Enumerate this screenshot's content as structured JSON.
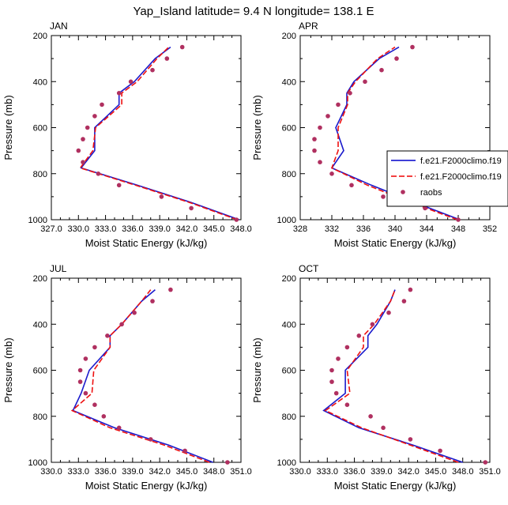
{
  "figure_title": "Yap_Island  latitude= 9.4 N longitude= 138.1 E",
  "legend": {
    "entries": [
      {
        "label": "f.e21.F2000climo.f19",
        "color": "#0000cc",
        "style": "solid"
      },
      {
        "label": "f.e21.F2000climo.f19",
        "color": "#ee0000",
        "style": "dashed"
      },
      {
        "label": "raobs",
        "color": "#b03060",
        "style": "marker"
      }
    ]
  },
  "colors": {
    "model1": "#1a1acc",
    "model2": "#ee1111",
    "obs": "#b03060"
  },
  "chart_data": [
    {
      "type": "line",
      "panel": "JAN",
      "xlabel": "Moist Static Energy (kJ/kg)",
      "ylabel": "Pressure (mb)",
      "xlim": [
        327,
        348
      ],
      "ylim": [
        1000,
        200
      ],
      "xticks": [
        "327.0",
        "330.0",
        "333.0",
        "336.0",
        "339.0",
        "342.0",
        "345.0",
        "348.0"
      ],
      "yticks": [
        "200",
        "400",
        "600",
        "800",
        "1000"
      ],
      "pressure": [
        1000,
        925,
        850,
        775,
        700,
        600,
        500,
        450,
        400,
        300,
        250
      ],
      "series": [
        {
          "name": "f.e21.F2000climo.f19 (solid)",
          "mse": [
            347.8,
            342.5,
            336.5,
            330.3,
            331.8,
            331.8,
            334.5,
            334.5,
            336.2,
            338.5,
            340.2
          ]
        },
        {
          "name": "f.e21.F2000climo.f19 (dashed)",
          "mse": [
            347.6,
            342.3,
            336.3,
            330.2,
            331.6,
            331.9,
            334.8,
            334.8,
            336.5,
            338.7,
            340.0
          ]
        }
      ],
      "obs": {
        "pressure": [
          1000,
          950,
          900,
          850,
          800,
          750,
          700,
          650,
          600,
          550,
          500,
          450,
          400,
          350,
          300,
          250
        ],
        "mse": [
          347.5,
          342.5,
          339.2,
          334.5,
          332.2,
          330.5,
          330.0,
          330.5,
          331.0,
          331.8,
          332.6,
          334.5,
          335.8,
          338.2,
          339.8,
          341.5
        ]
      }
    },
    {
      "type": "line",
      "panel": "APR",
      "xlabel": "Moist Static Energy (kJ/kg)",
      "ylabel": "Pressure (mb)",
      "xlim": [
        328,
        352
      ],
      "ylim": [
        1000,
        200
      ],
      "xticks": [
        "328",
        "332",
        "336",
        "340",
        "344",
        "348",
        "352"
      ],
      "yticks": [
        "200",
        "400",
        "600",
        "800",
        "1000"
      ],
      "pressure": [
        1000,
        925,
        850,
        775,
        700,
        600,
        500,
        450,
        400,
        300,
        250
      ],
      "series": [
        {
          "name": "f.e21.F2000climo.f19 (solid)",
          "mse": [
            348.2,
            342.5,
            337.0,
            332.0,
            333.5,
            332.5,
            333.9,
            333.9,
            334.8,
            338.0,
            340.5
          ]
        },
        {
          "name": "f.e21.F2000climo.f19 (dashed)",
          "mse": [
            347.9,
            342.0,
            336.5,
            332.0,
            332.8,
            332.8,
            334.0,
            334.0,
            335.0,
            337.8,
            340.0
          ]
        }
      ],
      "obs": {
        "pressure": [
          1000,
          950,
          900,
          850,
          800,
          750,
          700,
          650,
          600,
          550,
          500,
          450,
          400,
          350,
          300,
          250
        ],
        "mse": [
          348.0,
          343.8,
          338.5,
          334.5,
          332.0,
          330.5,
          329.8,
          329.8,
          330.5,
          331.5,
          332.8,
          334.3,
          336.2,
          338.3,
          340.2,
          342.2
        ]
      }
    },
    {
      "type": "line",
      "panel": "JUL",
      "xlabel": "Moist Static Energy (kJ/kg)",
      "ylabel": "Pressure (mb)",
      "xlim": [
        330,
        351
      ],
      "ylim": [
        1000,
        200
      ],
      "xticks": [
        "330.0",
        "333.0",
        "336.0",
        "339.0",
        "342.0",
        "345.0",
        "348.0",
        "351.0"
      ],
      "yticks": [
        "200",
        "400",
        "600",
        "800",
        "1000"
      ],
      "pressure": [
        1000,
        925,
        850,
        775,
        700,
        600,
        500,
        450,
        400,
        300,
        250
      ],
      "series": [
        {
          "name": "f.e21.F2000climo.f19 (solid)",
          "mse": [
            347.9,
            343.0,
            337.0,
            332.4,
            333.3,
            334.2,
            336.5,
            336.5,
            337.8,
            340.0,
            341.5
          ]
        },
        {
          "name": "f.e21.F2000climo.f19 (dashed)",
          "mse": [
            347.5,
            342.5,
            336.5,
            332.3,
            334.5,
            334.7,
            336.5,
            336.5,
            337.8,
            340.0,
            341.0
          ]
        }
      ],
      "obs": {
        "pressure": [
          1000,
          950,
          900,
          850,
          800,
          750,
          700,
          650,
          600,
          550,
          500,
          450,
          400,
          350,
          300,
          250
        ],
        "mse": [
          349.5,
          344.8,
          341.0,
          337.5,
          335.8,
          334.8,
          333.8,
          333.2,
          333.2,
          333.8,
          334.8,
          336.2,
          337.8,
          339.2,
          341.2,
          343.2
        ]
      }
    },
    {
      "type": "line",
      "panel": "OCT",
      "xlabel": "Moist Static Energy (kJ/kg)",
      "ylabel": "Pressure (mb)",
      "xlim": [
        330,
        351
      ],
      "ylim": [
        1000,
        200
      ],
      "xticks": [
        "330.0",
        "333.0",
        "336.0",
        "339.0",
        "342.0",
        "345.0",
        "348.0",
        "351.0"
      ],
      "yticks": [
        "200",
        "400",
        "600",
        "800",
        "1000"
      ],
      "pressure": [
        1000,
        925,
        850,
        775,
        700,
        600,
        500,
        450,
        400,
        300,
        250
      ],
      "series": [
        {
          "name": "f.e21.F2000climo.f19 (solid)",
          "mse": [
            348.0,
            342.5,
            336.5,
            332.6,
            335.0,
            335.0,
            337.5,
            337.5,
            338.5,
            340.0,
            340.5
          ]
        },
        {
          "name": "f.e21.F2000climo.f19 (dashed)",
          "mse": [
            347.5,
            342.2,
            336.8,
            332.8,
            335.5,
            335.2,
            337.0,
            337.0,
            338.2,
            340.0,
            340.5
          ]
        }
      ],
      "obs": {
        "pressure": [
          1000,
          950,
          900,
          850,
          800,
          750,
          700,
          650,
          600,
          550,
          500,
          450,
          400,
          350,
          300,
          250
        ],
        "mse": [
          350.5,
          345.5,
          342.2,
          339.2,
          337.8,
          335.2,
          334.0,
          333.5,
          333.5,
          334.2,
          335.2,
          336.5,
          338.0,
          339.8,
          341.5,
          342.2
        ]
      }
    }
  ]
}
